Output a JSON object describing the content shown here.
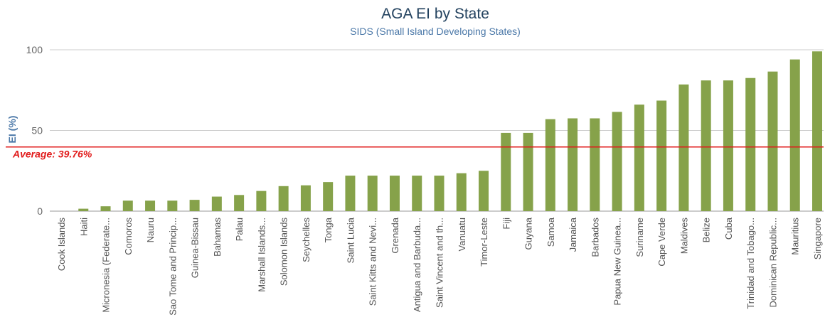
{
  "chart_data": {
    "type": "bar",
    "title": "AGA EI by State",
    "subtitle": "SIDS (Small Island Developing States)",
    "xlabel": "",
    "ylabel": "EI (%)",
    "ylim": [
      0,
      100
    ],
    "yticks": [
      0,
      50,
      100
    ],
    "grid": true,
    "series_color": "#86a24a",
    "grid_color": "#cccccc",
    "axis_color": "#999999",
    "average": {
      "value": 39.76,
      "label": "Average: 39.76%",
      "color": "#e11b1b"
    },
    "categories": [
      "Cook Islands",
      "Haiti",
      "Micronesia (Federate...",
      "Comoros",
      "Nauru",
      "Sao Tome and Princip...",
      "Guinea-Bissau",
      "Bahamas",
      "Palau",
      "Marshall Islands...",
      "Solomon Islands",
      "Seychelles",
      "Tonga",
      "Saint Lucia",
      "Saint Kitts and Nevi...",
      "Grenada",
      "Antigua and Barbuda...",
      "Saint Vincent and th...",
      "Vanuatu",
      "Timor-Leste",
      "Fiji",
      "Guyana",
      "Samoa",
      "Jamaica",
      "Barbados",
      "Papua New Guinea...",
      "Suriname",
      "Cape Verde",
      "Maldives",
      "Belize",
      "Cuba",
      "Trinidad and Tobago...",
      "Dominican Republic...",
      "Mauritius",
      "Singapore"
    ],
    "values": [
      0,
      1.5,
      3,
      6.5,
      6.5,
      6.5,
      7,
      9,
      10,
      12.5,
      15.5,
      16,
      18,
      22,
      22,
      22,
      22,
      22,
      23.5,
      25,
      48.5,
      48.5,
      57,
      57.5,
      57.5,
      61.5,
      66,
      68.5,
      78.5,
      81,
      81,
      82.5,
      86.5,
      94,
      99
    ]
  }
}
